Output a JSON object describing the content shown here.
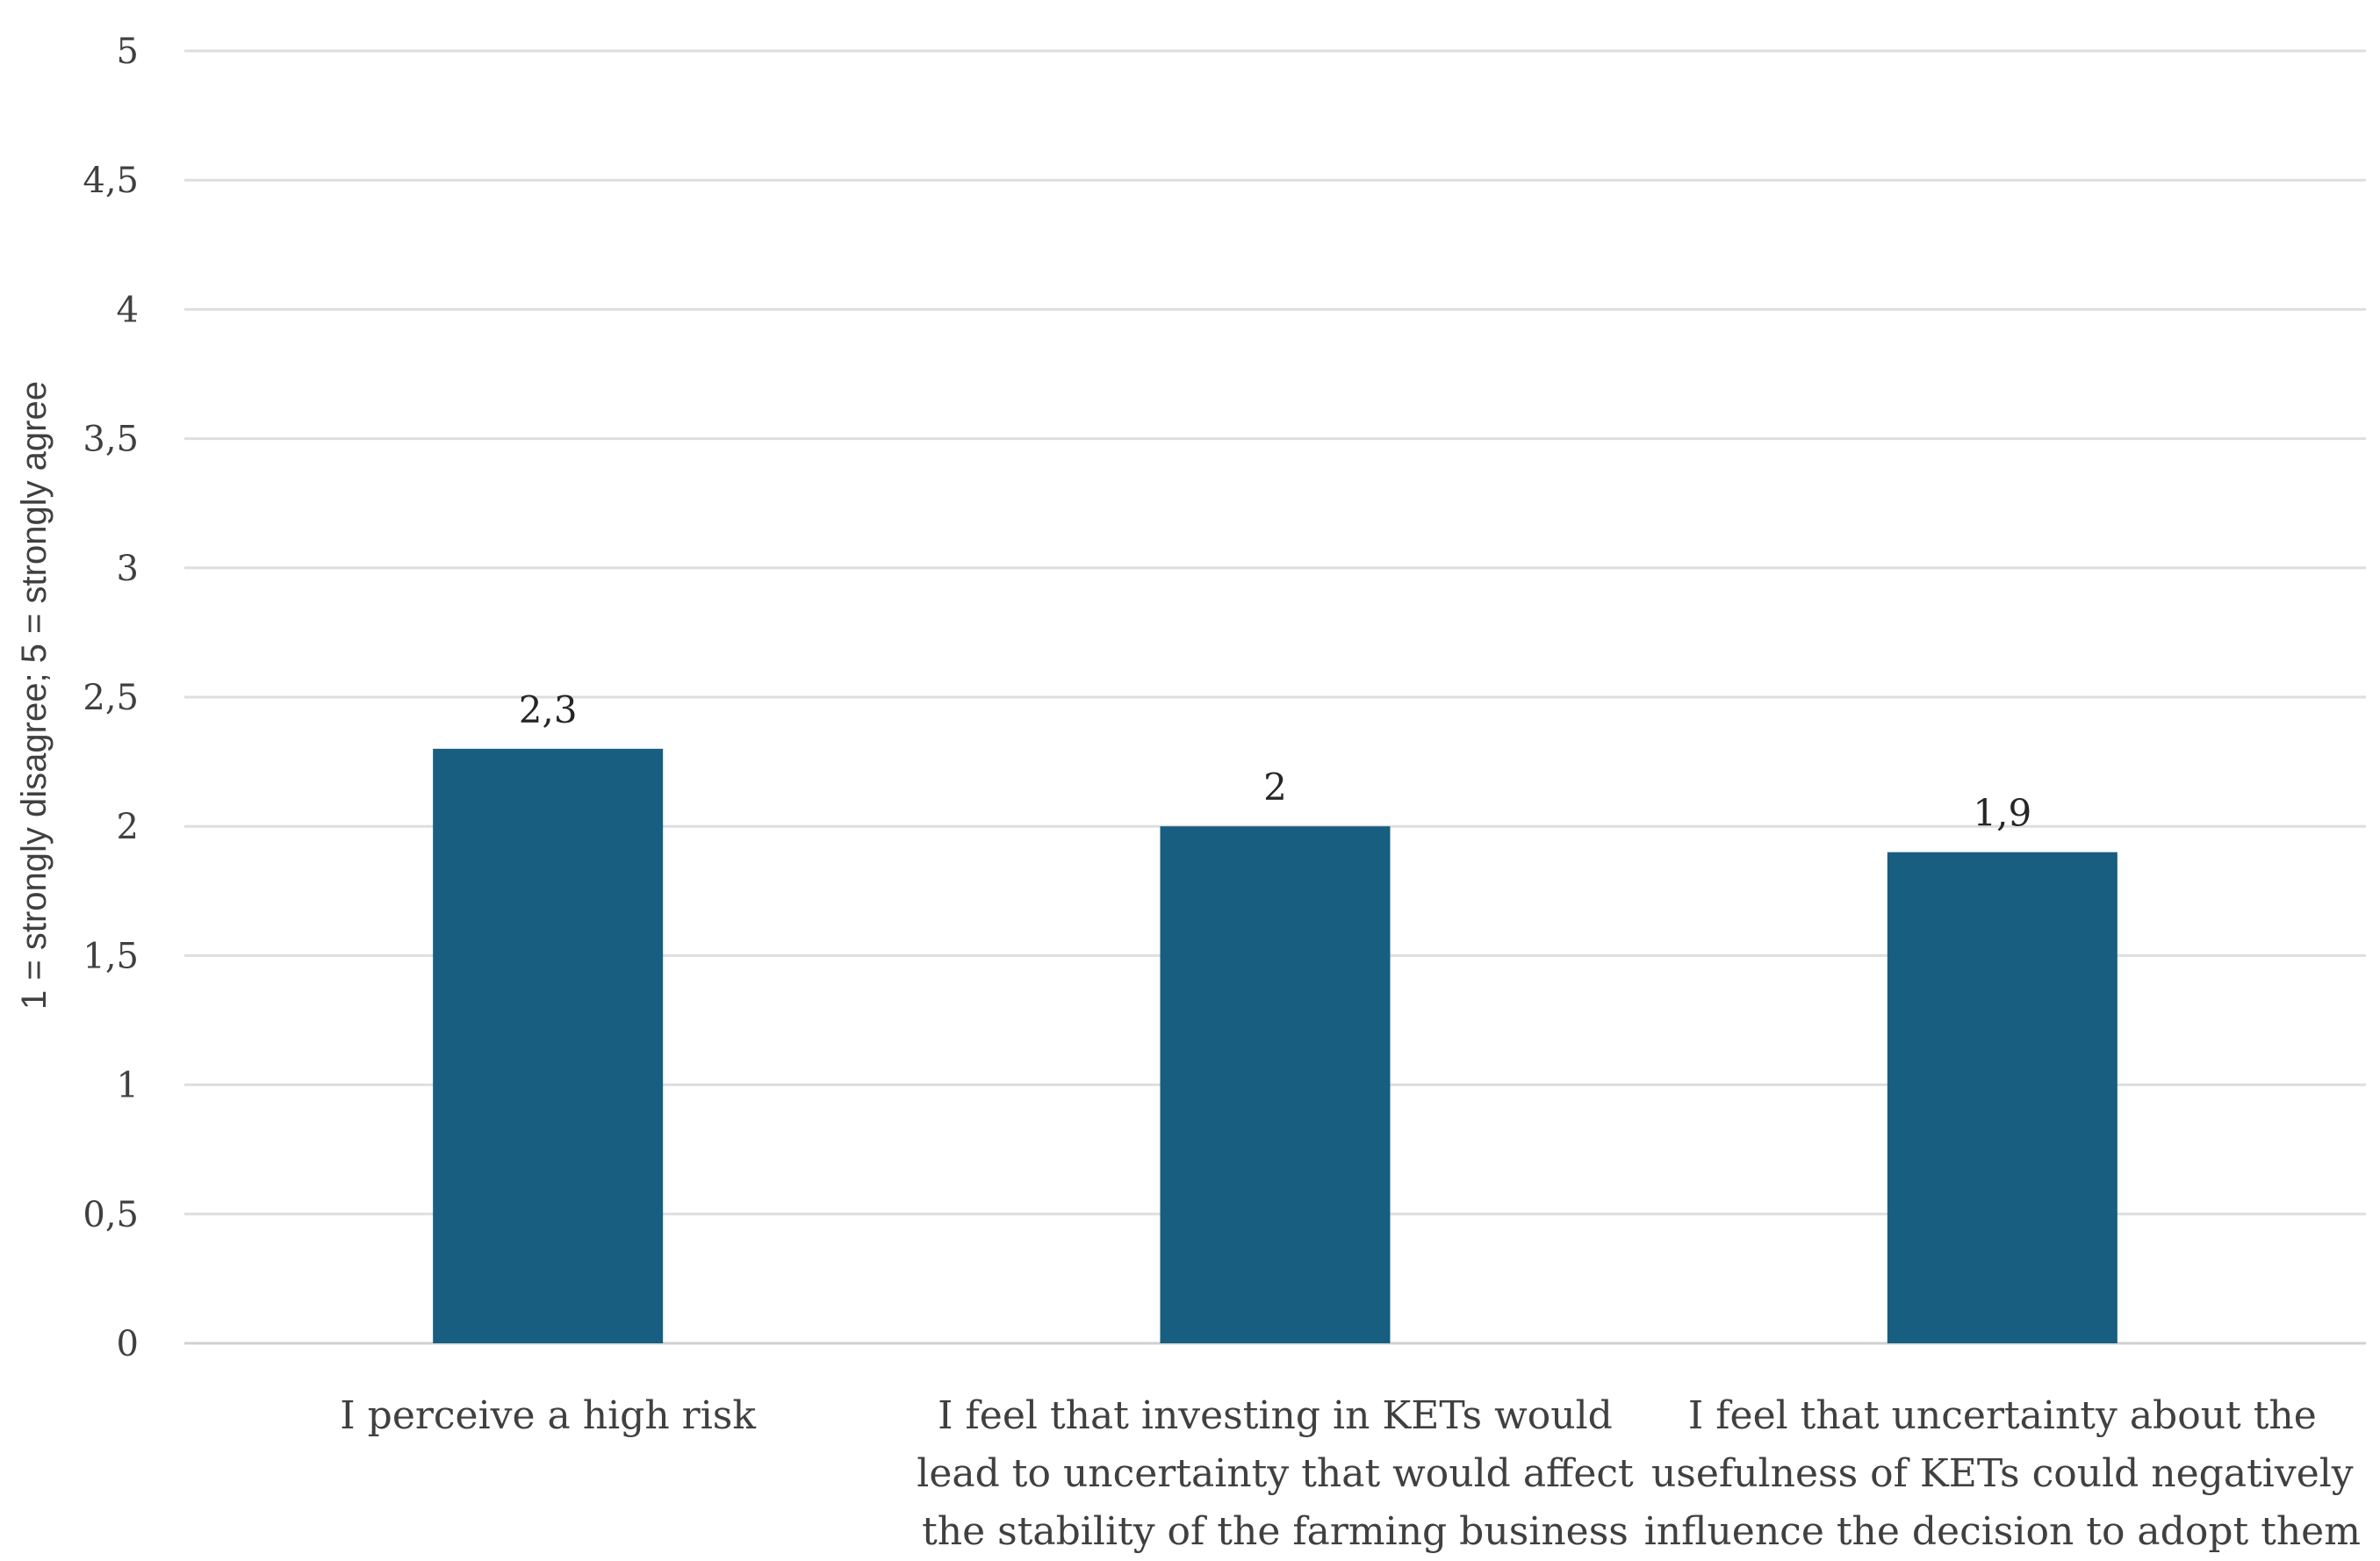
{
  "chart_data": {
    "type": "bar",
    "title": "",
    "xlabel": "",
    "ylabel": "1 = strongly disagree; 5 = strongly agree",
    "ylim": [
      0,
      5
    ],
    "yticks": [
      0,
      0.5,
      1,
      1.5,
      2,
      2.5,
      3,
      3.5,
      4,
      4.5,
      5
    ],
    "ytick_labels": [
      "0",
      "0,5",
      "1",
      "1,5",
      "2",
      "2,5",
      "3",
      "3,5",
      "4",
      "4,5",
      "5"
    ],
    "grid": true,
    "legend": "none",
    "bar_color": "#175e80",
    "categories": [
      "I perceive a high risk",
      "I feel that investing in KETs would\nlead to uncertainty that would affect\nthe stability of the farming business",
      "I feel that uncertainty about the\nusefulness of KETs could negatively\ninfluence the decision to adopt them"
    ],
    "values": [
      2.3,
      2,
      1.9
    ],
    "value_labels": [
      "2,3",
      "2",
      "1,9"
    ]
  }
}
